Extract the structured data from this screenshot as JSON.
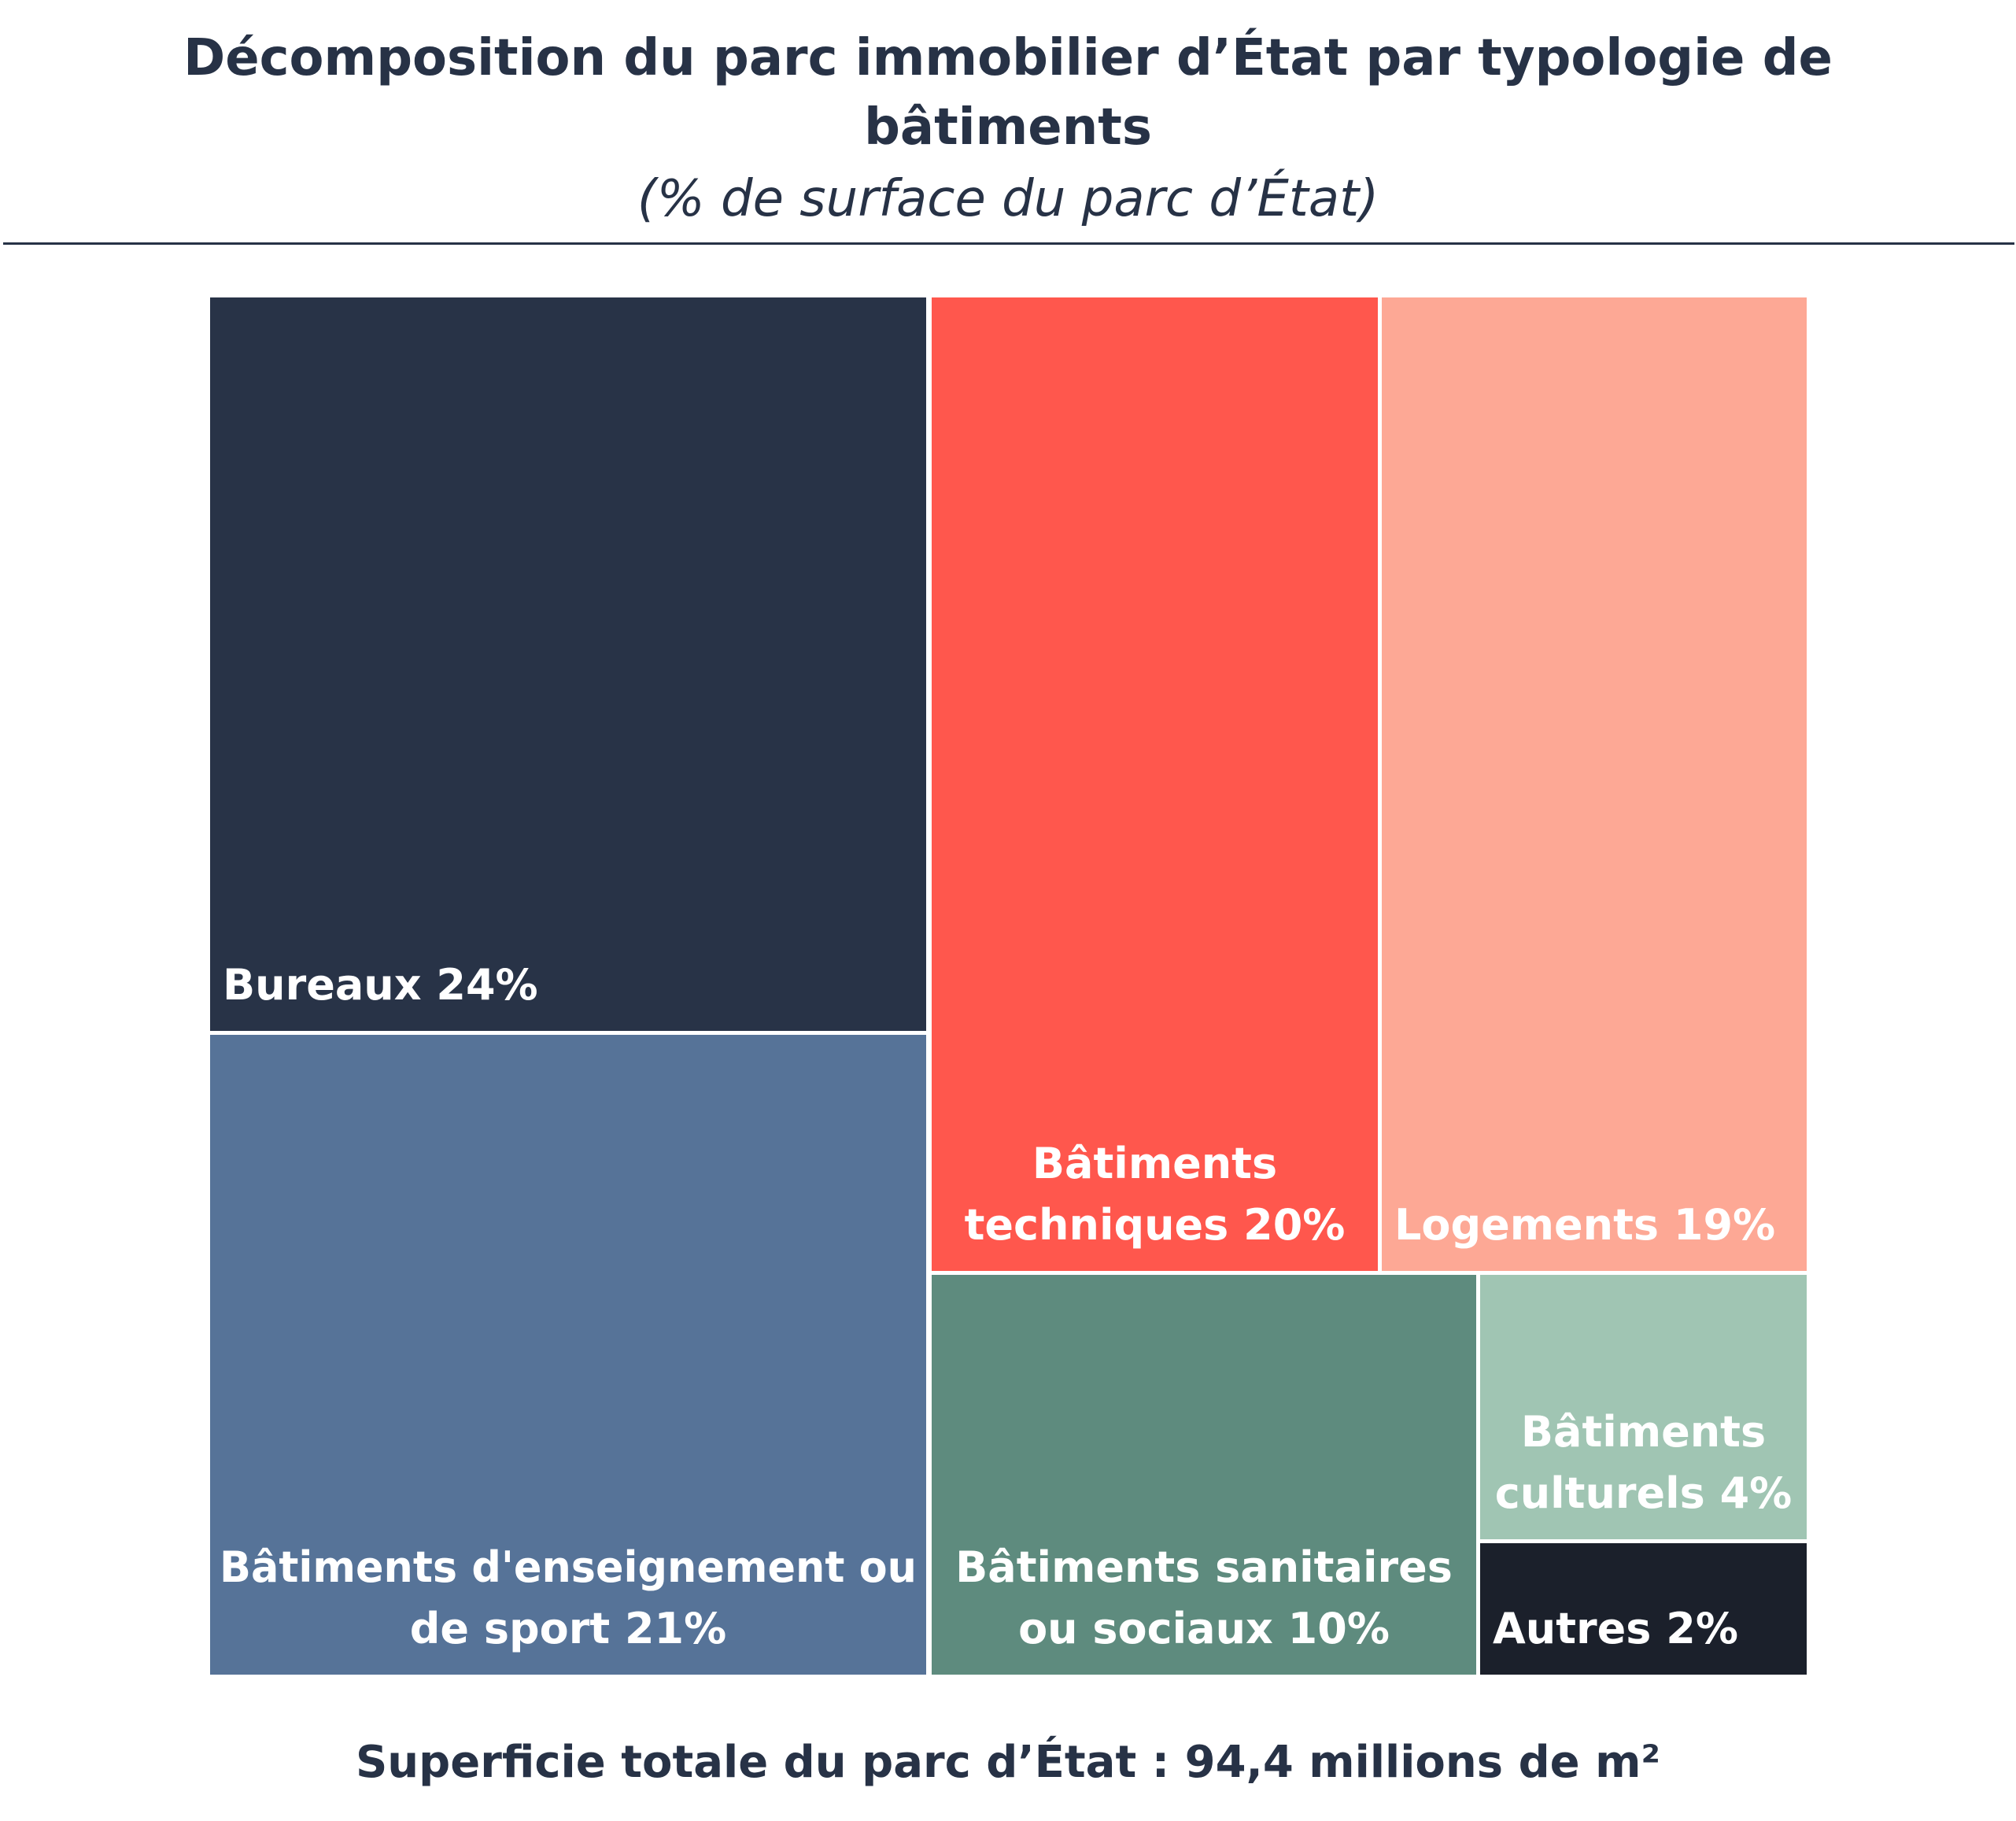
{
  "header": {
    "title": "Décomposition du parc immobilier d’État par typologie de bâtiments",
    "subtitle": "(% de surface du parc d’État)"
  },
  "chart_data": {
    "type": "treemap",
    "title": "Décomposition du parc immobilier d’État par typologie de bâtiments",
    "subtitle": "(% de surface du parc d’État)",
    "unit": "%",
    "items": [
      {
        "name": "Bureaux",
        "value": 24,
        "label_lines": [
          "Bureaux 24%"
        ],
        "color": "#283347",
        "align": "left"
      },
      {
        "name": "Bâtiments d'enseignement ou de sport",
        "value": 21,
        "label_lines": [
          "Bâtiments d'enseignement ou",
          "de sport 21%"
        ],
        "color": "#567398",
        "align": "center"
      },
      {
        "name": "Bâtiments techniques",
        "value": 20,
        "label_lines": [
          "Bâtiments",
          "techniques 20%"
        ],
        "color": "#FF574D",
        "align": "center"
      },
      {
        "name": "Logements",
        "value": 19,
        "label_lines": [
          "Logements 19%"
        ],
        "color": "#FDA895",
        "align": "left"
      },
      {
        "name": "Bâtiments sanitaires ou sociaux",
        "value": 10,
        "label_lines": [
          "Bâtiments sanitaires",
          "ou sociaux 10%"
        ],
        "color": "#5E8B7E",
        "align": "center"
      },
      {
        "name": "Bâtiments culturels",
        "value": 4,
        "label_lines": [
          "Bâtiments",
          "culturels 4%"
        ],
        "color": "#A0C5B3",
        "align": "center"
      },
      {
        "name": "Autres",
        "value": 2,
        "label_lines": [
          "Autres 2%"
        ],
        "color": "#1B202B",
        "align": "left"
      }
    ]
  },
  "footer": {
    "total": "Superficie totale du parc d’État : 94,4 millions de m²"
  }
}
